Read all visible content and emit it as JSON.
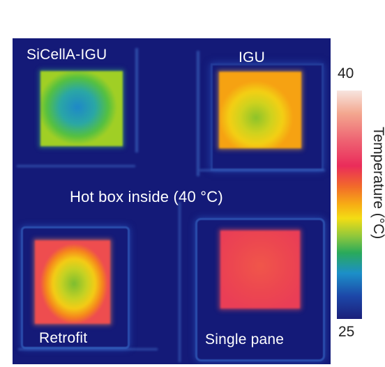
{
  "labels": {
    "sicella": "SiCellA-IGU",
    "igu": "IGU",
    "center": "Hot box inside (40 °C)",
    "retrofit": "Retrofit",
    "single": "Single pane"
  },
  "scale": {
    "max": "40",
    "min": "25",
    "title": "Temperature (°C)"
  },
  "colors": {
    "background": "#141a78",
    "scale_top": "#f7e5df",
    "scale_red": "#ea2c5a",
    "scale_yellow": "#f3dd14",
    "scale_green": "#2aaa5a",
    "scale_blue": "#1c47a8",
    "scale_bottom": "#1b1f7a"
  }
}
